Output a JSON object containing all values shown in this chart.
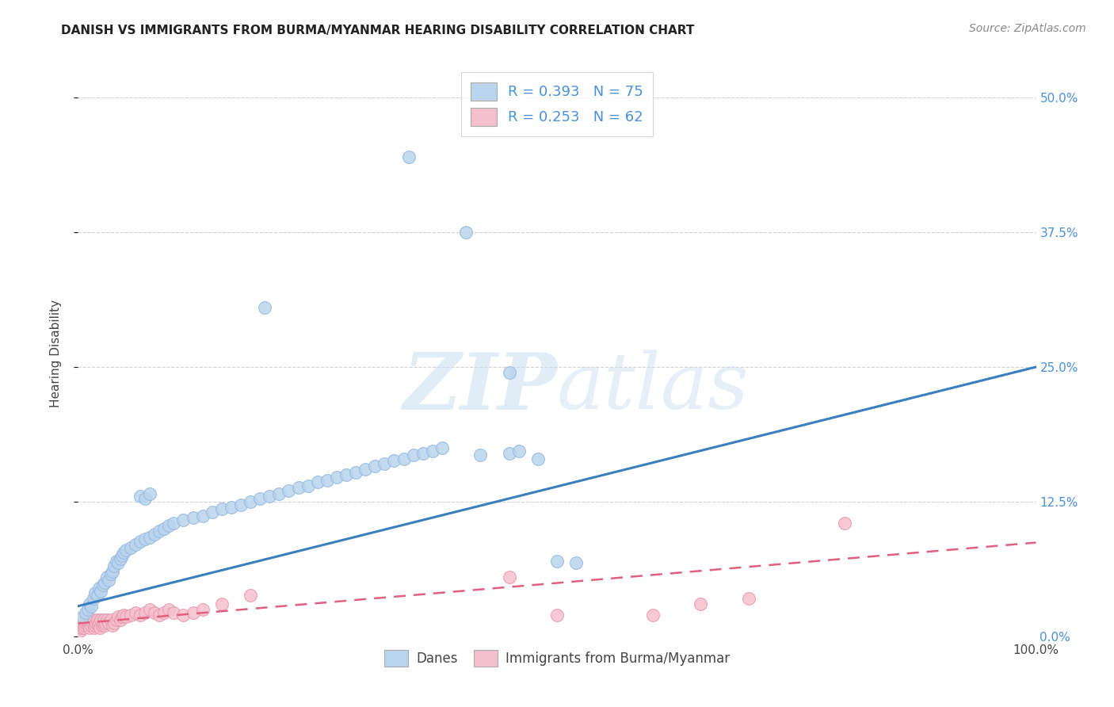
{
  "title": "DANISH VS IMMIGRANTS FROM BURMA/MYANMAR HEARING DISABILITY CORRELATION CHART",
  "source_text": "Source: ZipAtlas.com",
  "ylabel": "Hearing Disability",
  "xlim": [
    0.0,
    1.0
  ],
  "ylim": [
    0.0,
    0.525
  ],
  "yticks": [
    0.0,
    0.125,
    0.25,
    0.375,
    0.5
  ],
  "ytick_labels": [
    "0.0%",
    "12.5%",
    "25.0%",
    "37.5%",
    "50.0%"
  ],
  "danes_color": "#bad4ed",
  "danes_edge_color": "#92b8de",
  "danes_line_color": "#3a7ebf",
  "immigrants_color": "#f5c0ce",
  "immigrants_edge_color": "#e896aa",
  "immigrants_line_color": "#e06080",
  "watermark_zip": "ZIP",
  "watermark_atlas": "atlas",
  "background_color": "#ffffff",
  "grid_color": "#d0d0d0",
  "danes_N": 75,
  "immigrants_N": 62,
  "danes_R": 0.393,
  "immigrants_R": 0.253,
  "legend_label_1": "R = 0.393   N = 75",
  "legend_label_2": "R = 0.253   N = 62",
  "bottom_label_1": "Danes",
  "bottom_label_2": "Immigrants from Burma/Myanmar",
  "tick_color": "#4a90d9",
  "left_tick_color": "#888888",
  "title_fontsize": 11,
  "source_fontsize": 10
}
